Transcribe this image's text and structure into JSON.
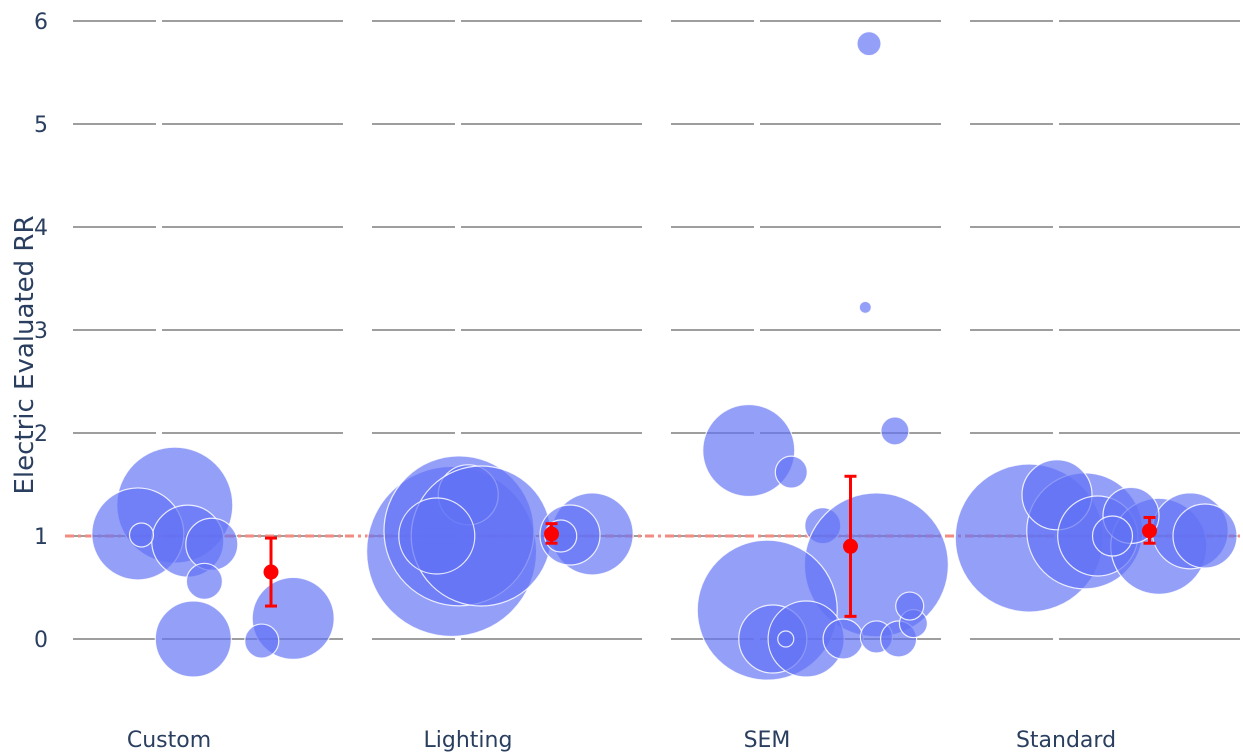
{
  "chart_data": {
    "type": "scatter",
    "subtype": "bubble-strip",
    "title": "",
    "xlabel": "",
    "ylabel": "Electric Evaluated RR",
    "categories": [
      "Custom",
      "Lighting",
      "SEM",
      "Standard"
    ],
    "ylim": [
      -0.7,
      6.2
    ],
    "yticks": [
      0,
      1,
      2,
      3,
      4,
      5,
      6
    ],
    "grid": true,
    "reference_line": {
      "y": 1,
      "style": "dashdot",
      "color": "#f28b82"
    },
    "bubble_color": "#6272f5",
    "mean_color": "#ff0000",
    "groups": [
      {
        "category": "Custom",
        "mean": 0.65,
        "ci_low": 0.32,
        "ci_high": 0.98,
        "mean_jitter": 0.6,
        "bubbles": [
          {
            "j": 0.08,
            "y": 1.3,
            "r": 58
          },
          {
            "j": -0.12,
            "y": 1.02,
            "r": 46
          },
          {
            "j": 0.15,
            "y": 0.95,
            "r": 36
          },
          {
            "j": 0.28,
            "y": 0.92,
            "r": 26
          },
          {
            "j": 0.24,
            "y": 0.56,
            "r": 18
          },
          {
            "j": 0.18,
            "y": 0.0,
            "r": 38
          },
          {
            "j": 0.72,
            "y": 0.2,
            "r": 41
          },
          {
            "j": 0.55,
            "y": -0.02,
            "r": 17
          },
          {
            "j": -0.1,
            "y": 1.01,
            "r": 12
          }
        ]
      },
      {
        "category": "Lighting",
        "mean": 1.02,
        "ci_low": 0.93,
        "ci_high": 1.12,
        "mean_jitter": 0.5,
        "bubbles": [
          {
            "j": -0.04,
            "y": 0.85,
            "r": 85
          },
          {
            "j": 0.0,
            "y": 1.05,
            "r": 75
          },
          {
            "j": 0.05,
            "y": 1.4,
            "r": 30
          },
          {
            "j": 0.12,
            "y": 1.0,
            "r": 70
          },
          {
            "j": -0.12,
            "y": 1.0,
            "r": 38
          },
          {
            "j": 0.72,
            "y": 1.02,
            "r": 41
          },
          {
            "j": 0.6,
            "y": 1.01,
            "r": 30
          },
          {
            "j": 0.55,
            "y": 1.0,
            "r": 16
          }
        ]
      },
      {
        "category": "SEM",
        "mean": 0.9,
        "ci_low": 0.22,
        "ci_high": 1.58,
        "mean_jitter": 0.5,
        "bubbles": [
          {
            "j": 0.6,
            "y": 5.78,
            "r": 12
          },
          {
            "j": 0.58,
            "y": 3.22,
            "r": 6
          },
          {
            "j": 0.74,
            "y": 2.02,
            "r": 14
          },
          {
            "j": -0.05,
            "y": 1.83,
            "r": 46
          },
          {
            "j": 0.18,
            "y": 1.62,
            "r": 16
          },
          {
            "j": 0.35,
            "y": 1.1,
            "r": 18
          },
          {
            "j": 0.64,
            "y": 0.72,
            "r": 72
          },
          {
            "j": 0.05,
            "y": 0.28,
            "r": 70
          },
          {
            "j": 0.08,
            "y": 0.0,
            "r": 34
          },
          {
            "j": 0.26,
            "y": 0.0,
            "r": 38
          },
          {
            "j": 0.46,
            "y": 0.0,
            "r": 20
          },
          {
            "j": 0.64,
            "y": 0.02,
            "r": 16
          },
          {
            "j": 0.76,
            "y": 0.0,
            "r": 18
          },
          {
            "j": 0.84,
            "y": 0.15,
            "r": 14
          },
          {
            "j": 0.82,
            "y": 0.32,
            "r": 14
          },
          {
            "j": 0.15,
            "y": 0.0,
            "r": 8
          }
        ]
      },
      {
        "category": "Standard",
        "mean": 1.05,
        "ci_low": 0.93,
        "ci_high": 1.18,
        "mean_jitter": 0.5,
        "bubbles": [
          {
            "j": -0.15,
            "y": 0.98,
            "r": 74
          },
          {
            "j": 0.15,
            "y": 1.05,
            "r": 58
          },
          {
            "j": 0.0,
            "y": 1.4,
            "r": 35
          },
          {
            "j": 0.22,
            "y": 1.0,
            "r": 40
          },
          {
            "j": 0.55,
            "y": 0.9,
            "r": 48
          },
          {
            "j": 0.72,
            "y": 1.05,
            "r": 38
          },
          {
            "j": 0.8,
            "y": 1.0,
            "r": 32
          },
          {
            "j": 0.4,
            "y": 1.2,
            "r": 28
          },
          {
            "j": 0.3,
            "y": 1.0,
            "r": 20
          }
        ]
      }
    ]
  }
}
